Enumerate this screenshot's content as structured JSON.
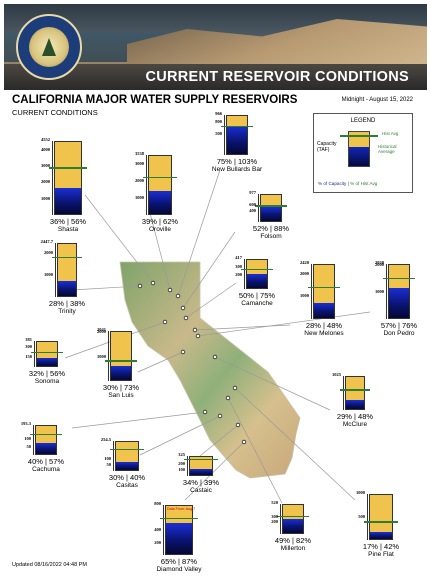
{
  "header": {
    "banner_title": "CURRENT RESERVOIR CONDITIONS"
  },
  "page": {
    "title": "CALIFORNIA MAJOR WATER SUPPLY RESERVOIRS",
    "subtitle": "CURRENT CONDITIONS",
    "date": "Midnight - August 15, 2022",
    "updated": "Updated 08/16/2022 04:48 PM"
  },
  "legend": {
    "title": "LEGEND",
    "capacity": "Capacity (TAF)",
    "hist_avg": "Hist Avg",
    "historical_average": "Historical Average",
    "pct_capacity": "% of Capacity",
    "pct_hist": "% of Hist Avg",
    "separator": "|"
  },
  "colors": {
    "capacity": "#f0c34c",
    "storage": "#0a1473",
    "hist_avg": "#2e7d32",
    "pct_capacity_text": "#1a2a9a",
    "pct_hist_text": "#2e7d32"
  },
  "chart_data": {
    "type": "bar",
    "units": "TAF",
    "reservoirs": [
      {
        "name": "Shasta",
        "capacity": 4552,
        "ticks": [
          1000,
          2000,
          3000,
          4000
        ],
        "pct_capacity": 36,
        "pct_hist": 56,
        "label": "36% | 56%"
      },
      {
        "name": "Oroville",
        "capacity": 3538,
        "ticks": [
          1000,
          2000,
          3000
        ],
        "pct_capacity": 39,
        "pct_hist": 62,
        "label": "39% | 62%"
      },
      {
        "name": "New Bullards Bar",
        "capacity": 966,
        "ticks": [
          500,
          800
        ],
        "pct_capacity": 75,
        "pct_hist": 103,
        "label": "75% | 103%"
      },
      {
        "name": "Folsom",
        "capacity": 977,
        "ticks": [
          400,
          600
        ],
        "pct_capacity": 52,
        "pct_hist": 88,
        "label": "52% | 88%"
      },
      {
        "name": "Trinity",
        "capacity": 2447.7,
        "ticks": [
          1000,
          2000
        ],
        "pct_capacity": 28,
        "pct_hist": 38,
        "label": "28% | 38%"
      },
      {
        "name": "Camanche",
        "capacity": 417,
        "ticks": [
          200,
          300
        ],
        "pct_capacity": 50,
        "pct_hist": 75,
        "label": "50% | 75%"
      },
      {
        "name": "New Melones",
        "capacity": 2420,
        "ticks": [
          1000,
          2000
        ],
        "pct_capacity": 28,
        "pct_hist": 48,
        "label": "28% | 48%"
      },
      {
        "name": "Don Pedro",
        "capacity": 2030,
        "ticks": [
          1000,
          2000
        ],
        "pct_capacity": 57,
        "pct_hist": 76,
        "label": "57% | 76%"
      },
      {
        "name": "Sonoma",
        "capacity": 381,
        "ticks": [
          150,
          300
        ],
        "pct_capacity": 32,
        "pct_hist": 56,
        "label": "32% | 56%"
      },
      {
        "name": "San Luis",
        "capacity": 2041,
        "ticks": [
          1000,
          2000
        ],
        "pct_capacity": 30,
        "pct_hist": 73,
        "label": "30% | 73%"
      },
      {
        "name": "McClure",
        "capacity": 1025,
        "ticks": [],
        "pct_capacity": 29,
        "pct_hist": 48,
        "label": "29% | 48%"
      },
      {
        "name": "Cachuma",
        "capacity": 193.3,
        "ticks": [
          50,
          100
        ],
        "pct_capacity": 40,
        "pct_hist": 57,
        "label": "40% | 57%"
      },
      {
        "name": "Casitas",
        "capacity": 254.5,
        "ticks": [
          50,
          100
        ],
        "pct_capacity": 30,
        "pct_hist": 40,
        "label": "30% | 40%"
      },
      {
        "name": "Castaic",
        "capacity": 325,
        "ticks": [
          100,
          200
        ],
        "pct_capacity": 34,
        "pct_hist": 39,
        "label": "34% | 39%"
      },
      {
        "name": "Diamond Valley",
        "capacity": 800,
        "ticks": [
          200,
          400
        ],
        "pct_capacity": 65,
        "pct_hist": 87,
        "label": "65% | 87%",
        "note": "Data From: Aug 7"
      },
      {
        "name": "Millerton",
        "capacity": 520,
        "ticks": [
          200,
          300
        ],
        "pct_capacity": 49,
        "pct_hist": 82,
        "label": "49% | 82%"
      },
      {
        "name": "Pine Flat",
        "capacity": 1000,
        "ticks": [
          500
        ],
        "pct_capacity": 17,
        "pct_hist": 42,
        "label": "17% | 42%"
      }
    ]
  }
}
